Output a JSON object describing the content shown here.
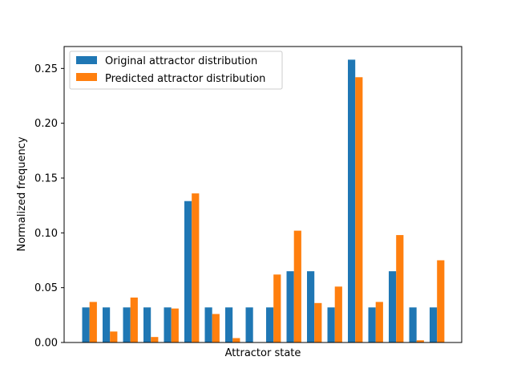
{
  "chart_data": {
    "type": "bar",
    "xlabel": "Attractor state",
    "ylabel": "Normalized frequency",
    "ylim": [
      0,
      0.27
    ],
    "yticks": [
      0.0,
      0.05,
      0.1,
      0.15,
      0.2,
      0.25
    ],
    "ytick_labels": [
      "0.00",
      "0.05",
      "0.10",
      "0.15",
      "0.20",
      "0.25"
    ],
    "xticks_shown": false,
    "grid": false,
    "legend_placement": "top-left",
    "series": [
      {
        "name": "Original attractor distribution",
        "color": "#1f77b4",
        "values": [
          0.032,
          0.032,
          0.032,
          0.032,
          0.032,
          0.129,
          0.032,
          0.032,
          0.032,
          0.032,
          0.065,
          0.065,
          0.032,
          0.258,
          0.032,
          0.065,
          0.032,
          0.032
        ]
      },
      {
        "name": "Predicted attractor distribution",
        "color": "#ff7f0e",
        "values": [
          0.037,
          0.01,
          0.041,
          0.005,
          0.031,
          0.136,
          0.026,
          0.004,
          0.0,
          0.062,
          0.102,
          0.036,
          0.051,
          0.242,
          0.037,
          0.098,
          0.002,
          0.075
        ]
      }
    ]
  }
}
